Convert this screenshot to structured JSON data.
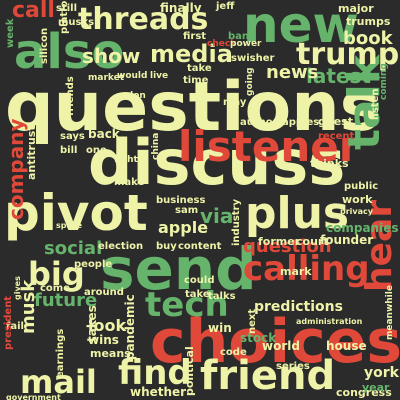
{
  "cloud": {
    "words": {
      "questions": "questions",
      "discuss": "discuss",
      "choices": "choices",
      "send": "send",
      "friend": "friend",
      "listener": "listener",
      "also": "also",
      "new": "new",
      "pivot": "pivot",
      "talk": "talk",
      "mail": "mail",
      "threads": "threads",
      "plus": "plus",
      "calling": "calling",
      "tech": "tech",
      "media": "media",
      "trump": "trump",
      "big": "big",
      "find": "find",
      "hear": "hear",
      "call": "call",
      "show": "show",
      "company": "company",
      "book": "book",
      "latest": "latest",
      "news": "news",
      "question": "question",
      "future": "future",
      "social": "social",
      "musk": "musk",
      "apple": "apple",
      "via": "via",
      "predictions": "predictions",
      "companies": "companies",
      "house": "house",
      "congress": "congress",
      "york": "york",
      "stock": "stock",
      "week": "week",
      "back": "back",
      "first": "first",
      "finally": "finally",
      "jeff": "jeff",
      "major": "major",
      "trumps": "trumps",
      "platform": "platform",
      "silicon": "silicon",
      "ban": "ban",
      "swisher": "swisher",
      "take": "take",
      "time": "time",
      "market": "market",
      "would": "would",
      "live": "live",
      "may": "may",
      "author": "author",
      "apples": "apples",
      "guest": "guest",
      "recent": "recent",
      "listen": "listen",
      "coming": "coming",
      "thinks": "thinks",
      "public": "public",
      "work": "work",
      "founder": "founder",
      "former": "former",
      "court": "court",
      "election": "election",
      "buy": "buy",
      "content": "content",
      "business": "business",
      "sam": "sam",
      "make": "make",
      "fight": "fight",
      "bill": "bill",
      "one": "one",
      "says": "says",
      "antitrust": "antitrust",
      "friends": "friends",
      "people": "people",
      "around": "around",
      "come": "come",
      "could": "could",
      "take2": "take",
      "mark": "mark",
      "talks": "talks",
      "earnings": "earnings",
      "takes": "takes",
      "wins": "wins",
      "means": "means",
      "look": "look",
      "pandemic": "pandemic",
      "political": "political",
      "code": "code",
      "win": "win",
      "world": "world",
      "year": "year",
      "next": "next",
      "series": "series",
      "whether": "whether",
      "fail": "fail",
      "president": "president",
      "government": "government",
      "meanwhile": "meanwhile",
      "industry": "industry",
      "administration": "administration",
      "privacy": "privacy",
      "china": "china",
      "going": "going",
      "check": "check",
      "power": "power",
      "musks": "musks",
      "still": "still",
      "several": "several",
      "space": "space",
      "gives": "gives",
      "data": "data",
      "bad": "bad",
      "year2": "year",
      "elon": "elon",
      "tiktok": "tiktok"
    }
  }
}
